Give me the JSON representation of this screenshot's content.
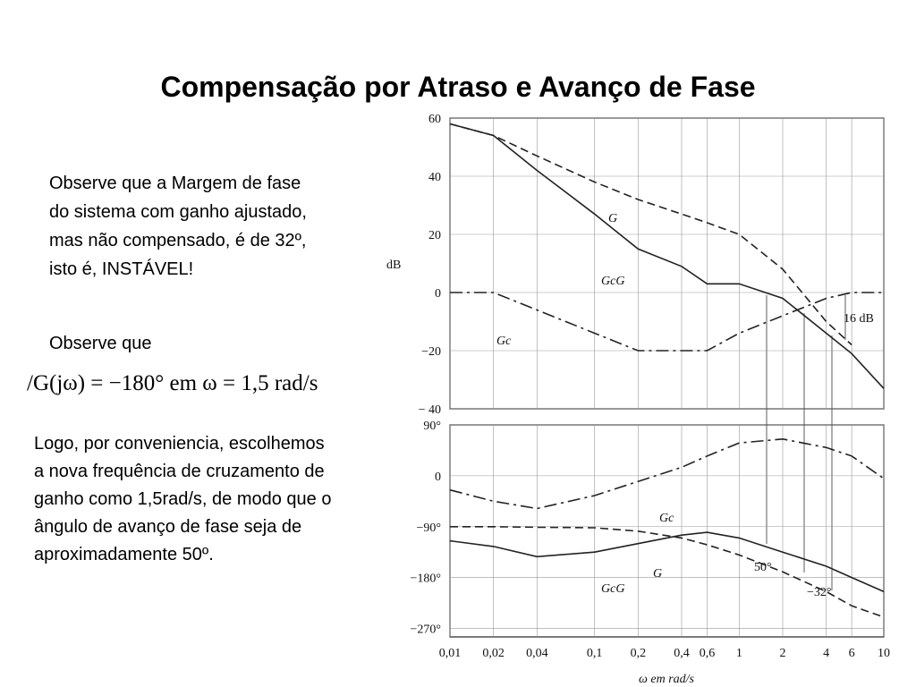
{
  "slide": {
    "title": "Compensação por Atraso e Avanço de Fase",
    "paragraph1": [
      "Observe que a Margem de fase",
      "do sistema com ganho ajustado,",
      "mas não compensado, é de 32º,",
      "isto é, INSTÁVEL!"
    ],
    "paragraph2": "Observe que",
    "formula": "/G(jω) = −180° em ω = 1,5 rad/s",
    "paragraph3": [
      "Logo, por conveniencia, escolhemos",
      "a nova frequência de cruzamento de",
      "ganho como 1,5rad/s, de modo que o",
      "ângulo de avanço de fase seja de",
      "aproximadamente 50º."
    ]
  },
  "chart_data": [
    {
      "type": "line",
      "ylabel": "dB",
      "log_x": true,
      "grid": true,
      "x": [
        0.01,
        0.02,
        0.04,
        0.1,
        0.2,
        0.4,
        0.6,
        1,
        2,
        4,
        6,
        10
      ],
      "xlim": [
        0.01,
        10
      ],
      "ylim": [
        -40,
        60
      ],
      "yticks": [
        60,
        40,
        20,
        0,
        {
          "value": -20,
          "label": "−20"
        },
        {
          "value": -40,
          "label": "− 40"
        }
      ],
      "series": [
        {
          "name": "G",
          "color": "#222222",
          "style": "dashed",
          "values": [
            58,
            54,
            47,
            38,
            32,
            27,
            24,
            20,
            8,
            -10,
            -18,
            null
          ]
        },
        {
          "name": "GcG",
          "color": "#222222",
          "style": "solid",
          "values": [
            58,
            54,
            42,
            27,
            15,
            9,
            3,
            3,
            -2,
            -14,
            -21,
            -33
          ]
        },
        {
          "name": "Gc",
          "color": "#222222",
          "style": "dashdot",
          "values": [
            0,
            0,
            -6,
            -14,
            -20,
            -20,
            -20,
            -14,
            -8,
            -2,
            0,
            0
          ]
        }
      ],
      "annotations": [
        "16 dB"
      ]
    },
    {
      "type": "line",
      "xlabel": "ω em rad/s",
      "log_x": true,
      "grid": true,
      "x": [
        0.01,
        0.02,
        0.04,
        0.1,
        0.2,
        0.4,
        0.6,
        1,
        2,
        4,
        6,
        10
      ],
      "xlim": [
        0.01,
        10
      ],
      "xticks": [
        {
          "value": 0.01,
          "label": "0,01"
        },
        {
          "value": 0.02,
          "label": "0,02"
        },
        {
          "value": 0.04,
          "label": "0,04"
        },
        {
          "value": 0.1,
          "label": "0,1"
        },
        {
          "value": 0.2,
          "label": "0,2"
        },
        {
          "value": 0.4,
          "label": "0,4"
        },
        {
          "value": 0.6,
          "label": "0,6"
        },
        1,
        2,
        4,
        6,
        10
      ],
      "ylim": [
        -285,
        90
      ],
      "yticks": [
        {
          "value": 90,
          "label": "90°"
        },
        0,
        {
          "value": -90,
          "label": "−90°"
        },
        {
          "value": -180,
          "label": "−180°"
        },
        {
          "value": -270,
          "label": "−270°"
        }
      ],
      "series": [
        {
          "name": "Gc",
          "color": "#222222",
          "style": "dashdot",
          "values": [
            -25,
            -45,
            -58,
            -35,
            -10,
            15,
            35,
            58,
            65,
            50,
            35,
            -5
          ]
        },
        {
          "name": "G",
          "color": "#222222",
          "style": "dashed",
          "values": [
            -90,
            -90,
            -91,
            -92,
            -98,
            -110,
            -122,
            -140,
            -170,
            -205,
            -230,
            -250
          ]
        },
        {
          "name": "GcG",
          "color": "#222222",
          "style": "solid",
          "values": [
            -115,
            -125,
            -143,
            -135,
            -120,
            -105,
            -100,
            -110,
            -135,
            -160,
            -180,
            -205
          ]
        }
      ],
      "annotations": [
        "50°",
        "−32°"
      ]
    }
  ]
}
